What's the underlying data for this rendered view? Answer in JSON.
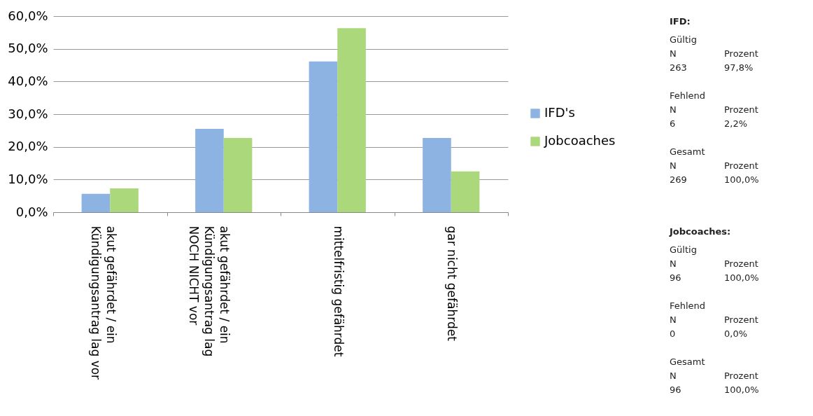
{
  "chart_data": [
    {
      "type": "bar",
      "categories": [
        "akut gefährdet / ein\nKündigungsantrag lag vor",
        "akut gefährdet / ein\nKündigungsantrag lag\nNOCH NICHT vor",
        "mittelfristig gefährdet",
        "gar nicht gefährdet"
      ],
      "series": [
        {
          "name": "IFD's",
          "color": "#8db3e2",
          "values": [
            5.6,
            25.5,
            46.1,
            22.7
          ]
        },
        {
          "name": "Jobcoaches",
          "color": "#aad87a",
          "values": [
            7.3,
            22.7,
            56.3,
            12.5
          ]
        }
      ],
      "ylim": [
        0,
        60
      ],
      "yticks": [
        {
          "value": 0,
          "label": "0,0%"
        },
        {
          "value": 10,
          "label": "10,0%"
        },
        {
          "value": 20,
          "label": "20,0%"
        },
        {
          "value": 30,
          "label": "30,0%"
        },
        {
          "value": 40,
          "label": "40,0%"
        },
        {
          "value": 50,
          "label": "50,0%"
        },
        {
          "value": 60,
          "label": "60,0%"
        }
      ],
      "grid": "y",
      "legend": "right"
    },
    {
      "type": "other",
      "annotations": [
        "IFD:",
        "Gültig",
        "N",
        "Prozent",
        "263",
        "97,8%",
        "Fehlend",
        "N",
        "Prozent",
        "6",
        "2,2%",
        "Gesamt",
        "N",
        "Prozent",
        "269",
        "100,0%",
        "Jobcoaches:",
        "Gültig",
        "N",
        "Prozent",
        "96",
        "100,0%",
        "Fehlend",
        "N",
        "Prozent",
        "0",
        "0,0%",
        "Gesamt",
        "N",
        "Prozent",
        "96",
        "100,0%"
      ]
    }
  ]
}
